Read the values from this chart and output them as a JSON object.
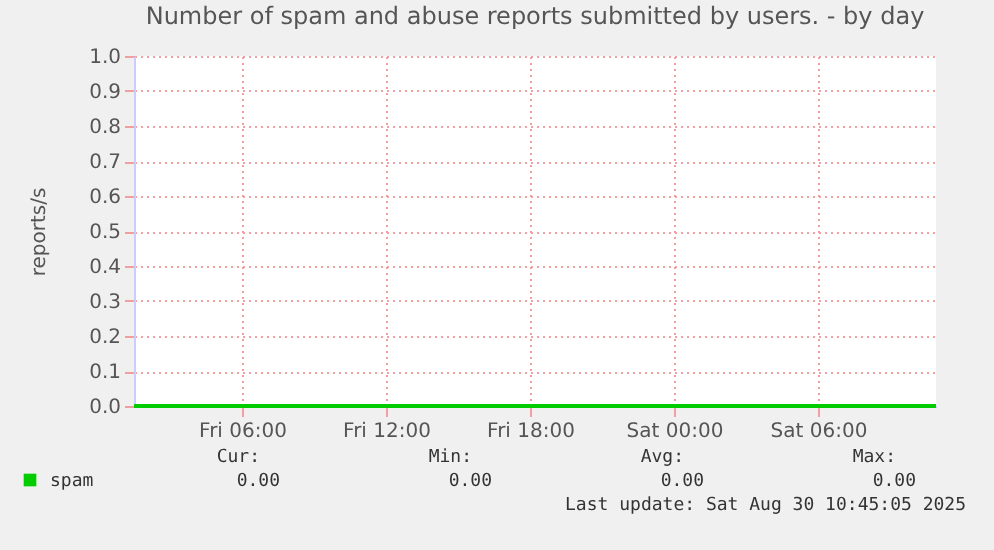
{
  "chart_data": {
    "type": "line",
    "title": "Number of spam and abuse reports submitted by users. - by day",
    "ylabel": "reports/s",
    "x": [
      "2025-08-29T01:30",
      "2025-08-30T10:55"
    ],
    "series": [
      {
        "name": "spam",
        "color": "#00cc00",
        "values": [
          0,
          0
        ]
      }
    ],
    "xlim": [
      "2025-08-29T01:30",
      "2025-08-30T10:55"
    ],
    "xticks": [
      {
        "value": "2025-08-29T06:00",
        "label": "Fri 06:00"
      },
      {
        "value": "2025-08-29T12:00",
        "label": "Fri 12:00"
      },
      {
        "value": "2025-08-29T18:00",
        "label": "Fri 18:00"
      },
      {
        "value": "2025-08-30T00:00",
        "label": "Sat 00:00"
      },
      {
        "value": "2025-08-30T06:00",
        "label": "Sat 06:00"
      }
    ],
    "ylim": [
      0,
      1
    ],
    "yticks": [
      {
        "value": 0,
        "label": "0.0"
      },
      {
        "value": 0.1,
        "label": "0.1"
      },
      {
        "value": 0.2,
        "label": "0.2"
      },
      {
        "value": 0.3,
        "label": "0.3"
      },
      {
        "value": 0.4,
        "label": "0.4"
      },
      {
        "value": 0.5,
        "label": "0.5"
      },
      {
        "value": 0.6,
        "label": "0.6"
      },
      {
        "value": 0.7,
        "label": "0.7"
      },
      {
        "value": 0.8,
        "label": "0.8"
      },
      {
        "value": 0.9,
        "label": "0.9"
      },
      {
        "value": 1,
        "label": "1.0"
      }
    ],
    "grid": true,
    "legend": "bottom left",
    "marker": "none",
    "line_style": "solid",
    "annotations": [
      "Cur:",
      "Min:",
      "Avg:",
      "Max:",
      "0.00",
      "0.00",
      "0.00",
      "0.00",
      "Last update: Sat Aug 30 10:45:05 2025"
    ]
  }
}
